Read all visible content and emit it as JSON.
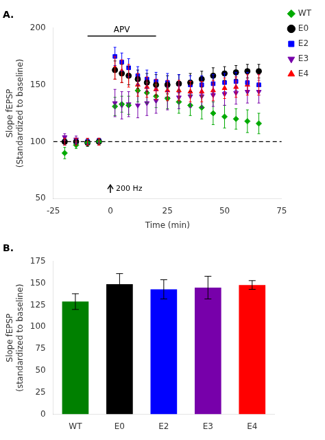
{
  "chart_data": [
    {
      "type": "scatter",
      "title": "A.",
      "xlabel": "Time (min)",
      "ylabel": "Slope fEPSP\n(Standardized to baseline)",
      "xlim": [
        -25,
        75
      ],
      "xticks": [
        -25,
        0,
        25,
        50,
        75
      ],
      "ylim": [
        50,
        200
      ],
      "yticks": [
        50,
        100,
        150,
        200
      ],
      "grid": false,
      "legend": "upper right",
      "reference_line": 100,
      "annotations": [
        {
          "text": "APV",
          "x": [
            -10,
            20
          ],
          "y": 193
        },
        {
          "text": "200 Hz",
          "x": 0,
          "y": [
            55,
            62
          ]
        }
      ],
      "series": [
        {
          "name": "WT",
          "color": "#00aa00",
          "marker": "diamond",
          "x": [
            -20,
            -15,
            -10,
            -5,
            2,
            5,
            8,
            12,
            16,
            20,
            25,
            30,
            35,
            40,
            45,
            50,
            55,
            60,
            65
          ],
          "values": [
            90,
            97,
            99,
            100,
            131,
            133,
            132,
            145,
            143,
            140,
            138,
            135,
            132,
            130,
            125,
            122,
            120,
            118,
            116
          ],
          "errors": [
            5,
            3,
            3,
            3,
            8,
            7,
            8,
            10,
            9,
            10,
            9,
            10,
            9,
            10,
            10,
            10,
            9,
            10,
            9
          ]
        },
        {
          "name": "E0",
          "color": "#000000",
          "marker": "circle",
          "x": [
            -20,
            -15,
            -10,
            -5,
            2,
            5,
            8,
            12,
            16,
            20,
            25,
            30,
            35,
            40,
            45,
            50,
            55,
            60,
            65
          ],
          "values": [
            100,
            100,
            99,
            100,
            163,
            160,
            158,
            155,
            152,
            150,
            150,
            151,
            152,
            155,
            158,
            160,
            161,
            162,
            162
          ],
          "errors": [
            3,
            3,
            3,
            3,
            8,
            8,
            8,
            8,
            8,
            9,
            8,
            8,
            8,
            7,
            7,
            6,
            6,
            6,
            6
          ]
        },
        {
          "name": "E2",
          "color": "#0000ff",
          "marker": "square",
          "x": [
            -20,
            -15,
            -10,
            -5,
            2,
            5,
            8,
            12,
            16,
            20,
            25,
            30,
            35,
            40,
            45,
            50,
            55,
            60,
            65
          ],
          "values": [
            100,
            100,
            100,
            101,
            175,
            170,
            165,
            158,
            155,
            153,
            152,
            151,
            150,
            150,
            151,
            152,
            153,
            152,
            150
          ],
          "errors": [
            3,
            2,
            2,
            2,
            8,
            8,
            8,
            8,
            8,
            8,
            8,
            8,
            8,
            8,
            8,
            8,
            8,
            9,
            9
          ]
        },
        {
          "name": "E3",
          "color": "#7700aa",
          "marker": "triangle_down",
          "x": [
            -20,
            -15,
            -10,
            -5,
            2,
            5,
            8,
            12,
            16,
            20,
            25,
            30,
            35,
            40,
            45,
            50,
            55,
            60,
            65
          ],
          "values": [
            104,
            102,
            100,
            100,
            134,
            132,
            133,
            132,
            134,
            136,
            138,
            139,
            140,
            140,
            141,
            142,
            143,
            144,
            144
          ],
          "errors": [
            3,
            3,
            3,
            3,
            12,
            12,
            11,
            11,
            11,
            11,
            10,
            10,
            10,
            10,
            10,
            10,
            10,
            10,
            10
          ]
        },
        {
          "name": "E4",
          "color": "#ff0000",
          "marker": "triangle_up",
          "x": [
            -20,
            -15,
            -10,
            -5,
            2,
            5,
            8,
            12,
            16,
            20,
            25,
            30,
            35,
            40,
            45,
            50,
            55,
            60,
            65
          ],
          "values": [
            100,
            100,
            100,
            100,
            165,
            162,
            158,
            150,
            148,
            146,
            145,
            145,
            144,
            144,
            145,
            147,
            148,
            150,
            150
          ],
          "errors": [
            3,
            3,
            3,
            3,
            10,
            10,
            10,
            10,
            9,
            9,
            9,
            9,
            9,
            9,
            9,
            9,
            9,
            9,
            9
          ]
        }
      ]
    },
    {
      "type": "bar",
      "title": "B.",
      "ylabel": "Slope fEPSP\n(standardized to baseline)",
      "categories": [
        "WT",
        "E0",
        "E2",
        "E3",
        "E4"
      ],
      "values": [
        129,
        149,
        143,
        145,
        148
      ],
      "errors": [
        9,
        12,
        11,
        13,
        5
      ],
      "colors": [
        "#008000",
        "#000000",
        "#0000ff",
        "#7700aa",
        "#ff0000"
      ],
      "ylim": [
        0,
        175
      ],
      "yticks": [
        0,
        25,
        50,
        75,
        100,
        125,
        150,
        175
      ],
      "grid": false
    }
  ]
}
